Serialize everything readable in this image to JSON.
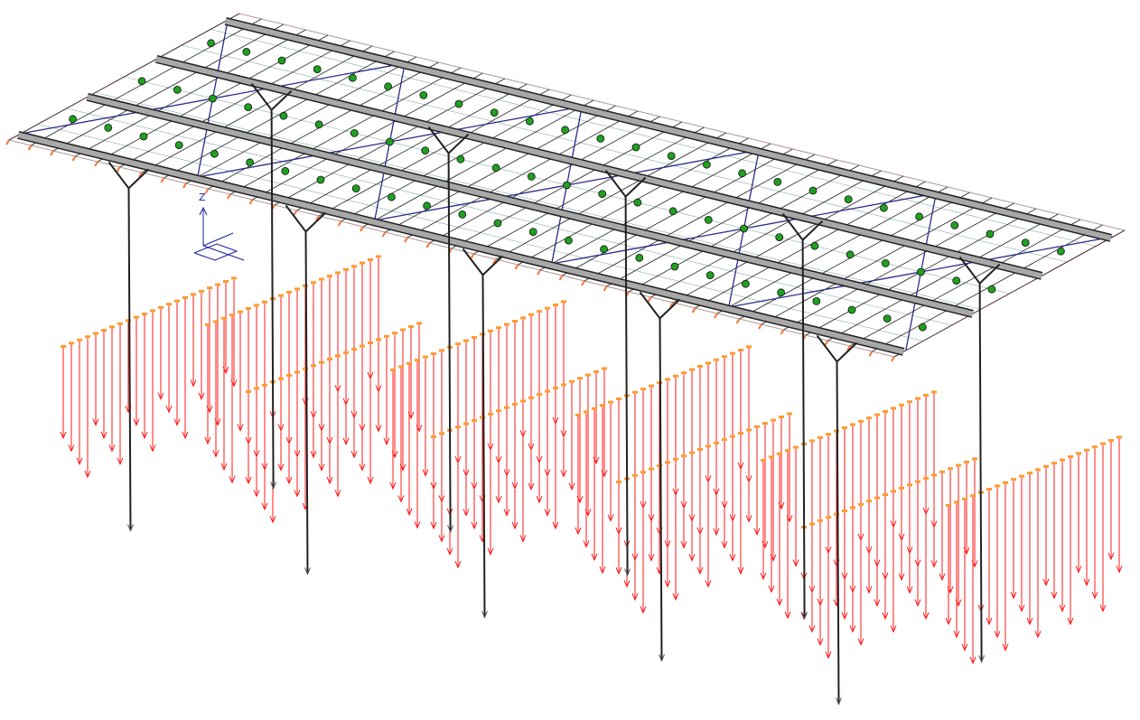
{
  "axis_triad": {
    "z_label": "Z"
  }
}
